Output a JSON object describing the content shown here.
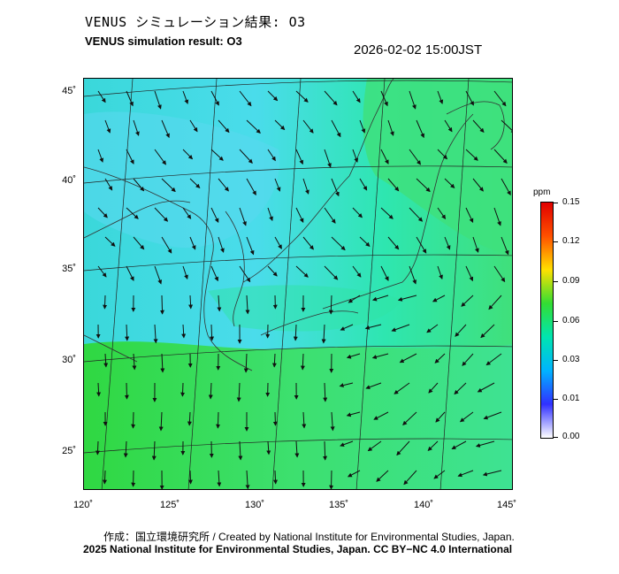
{
  "header": {
    "title_jp": "VENUS シミュレーション結果: O3",
    "title_en": "VENUS simulation result: O3",
    "timestamp": "2026-02-02 15:00JST"
  },
  "map": {
    "lat_labels": [
      "45˚",
      "40˚",
      "35˚",
      "30˚",
      "25˚"
    ],
    "lon_labels": [
      "120˚",
      "125˚",
      "130˚",
      "135˚",
      "140˚",
      "145˚"
    ],
    "field_colors": {
      "cyan_north": "#2ee4c4",
      "light_blue": "#52d8ea",
      "green_south": "#3cdc3c",
      "green_east": "#44e070",
      "coast_line": "#333333"
    }
  },
  "legend": {
    "unit": "ppm",
    "ticks": [
      "0.15",
      "0.12",
      "0.09",
      "0.06",
      "0.03",
      "0.01",
      "0.00"
    ],
    "colors": [
      "#ffffff",
      "#3030ff",
      "#00b4ff",
      "#00e5b0",
      "#33dd33",
      "#ffe000",
      "#ff5000",
      "#e00000"
    ]
  },
  "footer": {
    "credit": "作成：国立環境研究所 / Created by National Institute for Environmental Studies, Japan.",
    "copyright": "2025 National Institute for Environmental Studies, Japan. CC BY−NC 4.0 International"
  }
}
